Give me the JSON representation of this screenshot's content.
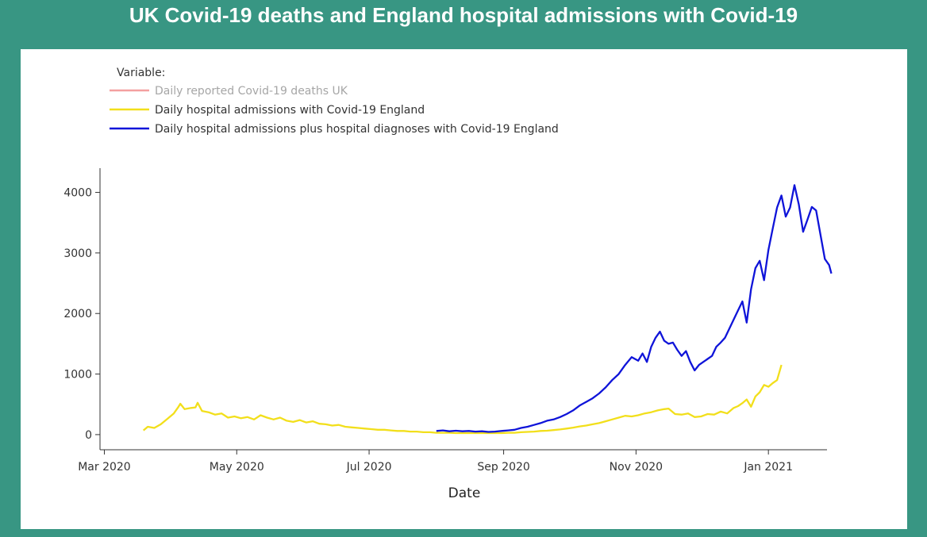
{
  "title": "UK Covid-19 deaths and England hospital admissions with Covid-19",
  "chart_data": {
    "type": "line",
    "xlabel": "Date",
    "ylabel": "",
    "xlim": [
      "2020-02-28",
      "2021-01-28"
    ],
    "ylim": [
      -250,
      4400
    ],
    "x_ticks": [
      {
        "date": "2020-03-01",
        "label": "Mar 2020"
      },
      {
        "date": "2020-05-01",
        "label": "May 2020"
      },
      {
        "date": "2020-07-01",
        "label": "Jul 2020"
      },
      {
        "date": "2020-09-01",
        "label": "Sep 2020"
      },
      {
        "date": "2020-11-01",
        "label": "Nov 2020"
      },
      {
        "date": "2021-01-01",
        "label": "Jan 2021"
      }
    ],
    "y_ticks": [
      0,
      1000,
      2000,
      3000,
      4000
    ],
    "y_tick_labels": [
      "0",
      "1000",
      "2000",
      "3000",
      "4000"
    ],
    "legend": {
      "title": "Variable:",
      "placement": "top-left"
    },
    "series": [
      {
        "name": "Daily reported Covid-19 deaths UK",
        "color": "#f4a0a0",
        "hidden": true,
        "points": []
      },
      {
        "name": "Daily hospital admissions with Covid-19 England",
        "color": "#f2df1b",
        "hidden": false,
        "points": [
          [
            "2020-03-19",
            70
          ],
          [
            "2020-03-21",
            130
          ],
          [
            "2020-03-24",
            110
          ],
          [
            "2020-03-27",
            170
          ],
          [
            "2020-03-30",
            260
          ],
          [
            "2020-04-02",
            350
          ],
          [
            "2020-04-04",
            450
          ],
          [
            "2020-04-05",
            510
          ],
          [
            "2020-04-07",
            420
          ],
          [
            "2020-04-10",
            440
          ],
          [
            "2020-04-12",
            450
          ],
          [
            "2020-04-13",
            525
          ],
          [
            "2020-04-15",
            390
          ],
          [
            "2020-04-18",
            370
          ],
          [
            "2020-04-21",
            330
          ],
          [
            "2020-04-24",
            350
          ],
          [
            "2020-04-27",
            280
          ],
          [
            "2020-04-30",
            300
          ],
          [
            "2020-05-03",
            270
          ],
          [
            "2020-05-06",
            290
          ],
          [
            "2020-05-09",
            250
          ],
          [
            "2020-05-12",
            320
          ],
          [
            "2020-05-15",
            280
          ],
          [
            "2020-05-18",
            250
          ],
          [
            "2020-05-21",
            280
          ],
          [
            "2020-05-24",
            230
          ],
          [
            "2020-05-27",
            210
          ],
          [
            "2020-05-30",
            240
          ],
          [
            "2020-06-02",
            200
          ],
          [
            "2020-06-05",
            220
          ],
          [
            "2020-06-08",
            180
          ],
          [
            "2020-06-11",
            170
          ],
          [
            "2020-06-14",
            150
          ],
          [
            "2020-06-17",
            160
          ],
          [
            "2020-06-20",
            130
          ],
          [
            "2020-06-23",
            120
          ],
          [
            "2020-06-26",
            110
          ],
          [
            "2020-06-29",
            100
          ],
          [
            "2020-07-02",
            90
          ],
          [
            "2020-07-05",
            80
          ],
          [
            "2020-07-08",
            80
          ],
          [
            "2020-07-11",
            70
          ],
          [
            "2020-07-14",
            60
          ],
          [
            "2020-07-17",
            60
          ],
          [
            "2020-07-20",
            50
          ],
          [
            "2020-07-23",
            50
          ],
          [
            "2020-07-26",
            40
          ],
          [
            "2020-07-29",
            40
          ],
          [
            "2020-08-01",
            30
          ],
          [
            "2020-08-04",
            30
          ],
          [
            "2020-08-07",
            30
          ],
          [
            "2020-08-10",
            25
          ],
          [
            "2020-08-13",
            25
          ],
          [
            "2020-08-16",
            25
          ],
          [
            "2020-08-19",
            25
          ],
          [
            "2020-08-22",
            25
          ],
          [
            "2020-08-25",
            25
          ],
          [
            "2020-08-28",
            25
          ],
          [
            "2020-08-31",
            25
          ],
          [
            "2020-09-03",
            30
          ],
          [
            "2020-09-06",
            30
          ],
          [
            "2020-09-09",
            40
          ],
          [
            "2020-09-12",
            45
          ],
          [
            "2020-09-15",
            50
          ],
          [
            "2020-09-18",
            60
          ],
          [
            "2020-09-21",
            65
          ],
          [
            "2020-09-24",
            75
          ],
          [
            "2020-09-27",
            85
          ],
          [
            "2020-09-30",
            100
          ],
          [
            "2020-10-03",
            115
          ],
          [
            "2020-10-06",
            135
          ],
          [
            "2020-10-09",
            150
          ],
          [
            "2020-10-12",
            170
          ],
          [
            "2020-10-15",
            190
          ],
          [
            "2020-10-18",
            220
          ],
          [
            "2020-10-21",
            250
          ],
          [
            "2020-10-24",
            280
          ],
          [
            "2020-10-27",
            310
          ],
          [
            "2020-10-30",
            300
          ],
          [
            "2020-11-02",
            320
          ],
          [
            "2020-11-05",
            350
          ],
          [
            "2020-11-08",
            370
          ],
          [
            "2020-11-11",
            400
          ],
          [
            "2020-11-14",
            420
          ],
          [
            "2020-11-16",
            430
          ],
          [
            "2020-11-19",
            340
          ],
          [
            "2020-11-22",
            330
          ],
          [
            "2020-11-25",
            350
          ],
          [
            "2020-11-28",
            290
          ],
          [
            "2020-12-01",
            300
          ],
          [
            "2020-12-04",
            340
          ],
          [
            "2020-12-07",
            330
          ],
          [
            "2020-12-10",
            380
          ],
          [
            "2020-12-13",
            350
          ],
          [
            "2020-12-16",
            440
          ],
          [
            "2020-12-18",
            470
          ],
          [
            "2020-12-20",
            520
          ],
          [
            "2020-12-22",
            580
          ],
          [
            "2020-12-24",
            460
          ],
          [
            "2020-12-26",
            630
          ],
          [
            "2020-12-28",
            700
          ],
          [
            "2020-12-30",
            820
          ],
          [
            "2021-01-01",
            790
          ],
          [
            "2021-01-03",
            850
          ],
          [
            "2021-01-05",
            900
          ],
          [
            "2021-01-07",
            1150
          ]
        ]
      },
      {
        "name": "Daily hospital admissions plus hospital diagnoses with Covid-19 England",
        "color": "#0f14d9",
        "hidden": false,
        "points": [
          [
            "2020-08-01",
            60
          ],
          [
            "2020-08-04",
            70
          ],
          [
            "2020-08-07",
            55
          ],
          [
            "2020-08-10",
            65
          ],
          [
            "2020-08-13",
            55
          ],
          [
            "2020-08-16",
            60
          ],
          [
            "2020-08-19",
            50
          ],
          [
            "2020-08-22",
            55
          ],
          [
            "2020-08-25",
            45
          ],
          [
            "2020-08-28",
            50
          ],
          [
            "2020-08-31",
            60
          ],
          [
            "2020-09-03",
            70
          ],
          [
            "2020-09-06",
            80
          ],
          [
            "2020-09-09",
            110
          ],
          [
            "2020-09-12",
            130
          ],
          [
            "2020-09-15",
            160
          ],
          [
            "2020-09-18",
            190
          ],
          [
            "2020-09-21",
            230
          ],
          [
            "2020-09-24",
            250
          ],
          [
            "2020-09-27",
            290
          ],
          [
            "2020-09-30",
            340
          ],
          [
            "2020-10-03",
            400
          ],
          [
            "2020-10-06",
            480
          ],
          [
            "2020-10-09",
            540
          ],
          [
            "2020-10-12",
            600
          ],
          [
            "2020-10-15",
            680
          ],
          [
            "2020-10-18",
            780
          ],
          [
            "2020-10-21",
            900
          ],
          [
            "2020-10-24",
            1000
          ],
          [
            "2020-10-27",
            1150
          ],
          [
            "2020-10-30",
            1280
          ],
          [
            "2020-11-02",
            1220
          ],
          [
            "2020-11-04",
            1340
          ],
          [
            "2020-11-06",
            1200
          ],
          [
            "2020-11-08",
            1450
          ],
          [
            "2020-11-10",
            1600
          ],
          [
            "2020-11-12",
            1700
          ],
          [
            "2020-11-14",
            1550
          ],
          [
            "2020-11-16",
            1500
          ],
          [
            "2020-11-18",
            1520
          ],
          [
            "2020-11-20",
            1400
          ],
          [
            "2020-11-22",
            1300
          ],
          [
            "2020-11-24",
            1380
          ],
          [
            "2020-11-26",
            1200
          ],
          [
            "2020-11-28",
            1060
          ],
          [
            "2020-11-30",
            1150
          ],
          [
            "2020-12-02",
            1200
          ],
          [
            "2020-12-04",
            1250
          ],
          [
            "2020-12-06",
            1300
          ],
          [
            "2020-12-08",
            1450
          ],
          [
            "2020-12-10",
            1520
          ],
          [
            "2020-12-12",
            1600
          ],
          [
            "2020-12-14",
            1750
          ],
          [
            "2020-12-16",
            1900
          ],
          [
            "2020-12-18",
            2050
          ],
          [
            "2020-12-20",
            2200
          ],
          [
            "2020-12-22",
            1850
          ],
          [
            "2020-12-24",
            2400
          ],
          [
            "2020-12-26",
            2750
          ],
          [
            "2020-12-28",
            2870
          ],
          [
            "2020-12-30",
            2550
          ],
          [
            "2021-01-01",
            3050
          ],
          [
            "2021-01-03",
            3400
          ],
          [
            "2021-01-05",
            3750
          ],
          [
            "2021-01-07",
            3950
          ],
          [
            "2021-01-09",
            3600
          ],
          [
            "2021-01-11",
            3750
          ],
          [
            "2021-01-13",
            4120
          ],
          [
            "2021-01-15",
            3800
          ],
          [
            "2021-01-17",
            3350
          ],
          [
            "2021-01-19",
            3550
          ],
          [
            "2021-01-21",
            3760
          ],
          [
            "2021-01-23",
            3700
          ],
          [
            "2021-01-25",
            3300
          ],
          [
            "2021-01-27",
            2900
          ],
          [
            "2021-01-29",
            2800
          ],
          [
            "2021-01-30",
            2660
          ]
        ]
      }
    ]
  }
}
